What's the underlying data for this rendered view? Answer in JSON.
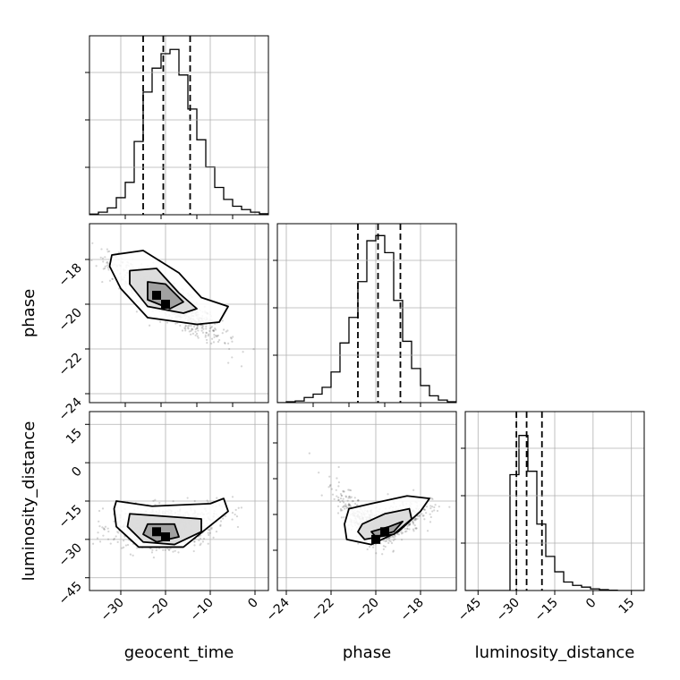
{
  "chart_data": {
    "type": "corner",
    "parameters": [
      "geocent_time",
      "phase",
      "luminosity_distance"
    ],
    "axis_labels": {
      "x": [
        "geocent_time",
        "phase",
        "luminosity_distance"
      ],
      "y": [
        "phase",
        "luminosity_distance"
      ]
    },
    "ranges": {
      "geocent_time": [
        -37,
        3
      ],
      "phase": [
        -24.4,
        -16.4
      ],
      "luminosity_distance": [
        -50,
        20
      ]
    },
    "ticks": {
      "geocent_time": [
        -30,
        -20,
        -10,
        0
      ],
      "phase": [
        -24,
        -22,
        -20,
        -18
      ],
      "luminosity_distance": [
        -45,
        -30,
        -15,
        0,
        15
      ]
    },
    "tick_labels": {
      "geocent_time": [
        "−30",
        "−20",
        "−10",
        "0"
      ],
      "phase": [
        "−24",
        "−22",
        "−20",
        "−18"
      ],
      "luminosity_distance": [
        "−45",
        "−30",
        "−15",
        "0",
        "15"
      ]
    },
    "quantiles": {
      "geocent_time": [
        -25.0,
        -20.5,
        -14.5
      ],
      "phase": [
        -20.8,
        -19.9,
        -18.9
      ],
      "luminosity_distance": [
        -30.0,
        -26.0,
        -20.0
      ]
    },
    "histograms": {
      "geocent_time": {
        "edges_start": -37,
        "bin_width": 2,
        "counts": [
          0.004,
          0.015,
          0.04,
          0.1,
          0.19,
          0.43,
          0.72,
          0.86,
          0.945,
          0.97,
          0.82,
          0.62,
          0.44,
          0.28,
          0.16,
          0.09,
          0.05,
          0.03,
          0.015,
          0.006
        ]
      },
      "phase": {
        "edges_start": -24.4,
        "bin_width": 0.4,
        "counts": [
          0.0,
          0.005,
          0.01,
          0.03,
          0.05,
          0.09,
          0.18,
          0.35,
          0.5,
          0.71,
          0.95,
          0.98,
          0.88,
          0.6,
          0.36,
          0.2,
          0.1,
          0.04,
          0.015,
          0.005
        ]
      },
      "luminosity_distance": {
        "edges_start": -50,
        "bin_width": 3.5,
        "counts": [
          0.0,
          0.0,
          0.0,
          0.0,
          0.0,
          0.68,
          0.91,
          0.7,
          0.39,
          0.2,
          0.11,
          0.05,
          0.03,
          0.02,
          0.01,
          0.005,
          0.002,
          0.0,
          0.0,
          0.0
        ]
      }
    },
    "pairs": [
      {
        "x": "geocent_time",
        "y": "phase",
        "scatter_center": [
          -20,
          -19.8
        ],
        "contours": [
          [
            [
              -32,
              -17.8
            ],
            [
              -25,
              -17.6
            ],
            [
              -17,
              -18.6
            ],
            [
              -12,
              -19.7
            ],
            [
              -6,
              -20.1
            ],
            [
              -8,
              -20.8
            ],
            [
              -13,
              -20.9
            ],
            [
              -24,
              -20.6
            ],
            [
              -30,
              -19.3
            ],
            [
              -32.5,
              -18.3
            ]
          ],
          [
            [
              -28,
              -18.5
            ],
            [
              -22,
              -18.4
            ],
            [
              -17,
              -19.5
            ],
            [
              -13,
              -20.2
            ],
            [
              -16,
              -20.4
            ],
            [
              -24,
              -20.1
            ],
            [
              -28,
              -19.1
            ]
          ],
          [
            [
              -24,
              -19.0
            ],
            [
              -20,
              -19.1
            ],
            [
              -16,
              -19.9
            ],
            [
              -19,
              -20.2
            ],
            [
              -24,
              -19.8
            ]
          ]
        ],
        "peaks": [
          [
            -22,
            -19.6
          ],
          [
            -20,
            -20.0
          ]
        ]
      },
      {
        "x": "geocent_time",
        "y": "luminosity_distance",
        "scatter_center": [
          -20,
          -25
        ],
        "contours": [
          [
            [
              -31,
              -15
            ],
            [
              -23,
              -17
            ],
            [
              -10,
              -16
            ],
            [
              -7,
              -14
            ],
            [
              -6,
              -19
            ],
            [
              -11,
              -26
            ],
            [
              -16,
              -33
            ],
            [
              -26,
              -33
            ],
            [
              -31,
              -25
            ],
            [
              -31.5,
              -18
            ]
          ],
          [
            [
              -28,
              -20
            ],
            [
              -20,
              -21
            ],
            [
              -12,
              -22
            ],
            [
              -12,
              -27
            ],
            [
              -18,
              -32
            ],
            [
              -25,
              -31
            ],
            [
              -28.5,
              -25
            ]
          ],
          [
            [
              -24,
              -24
            ],
            [
              -18,
              -24
            ],
            [
              -17,
              -29
            ],
            [
              -22,
              -31
            ],
            [
              -25,
              -28
            ]
          ]
        ],
        "peaks": [
          [
            -22,
            -27
          ],
          [
            -20,
            -29
          ]
        ]
      },
      {
        "x": "phase",
        "y": "luminosity_distance",
        "scatter_center": [
          -19.8,
          -25
        ],
        "contours": [
          [
            [
              -21.2,
              -18
            ],
            [
              -20.2,
              -16
            ],
            [
              -18.6,
              -13
            ],
            [
              -17.6,
              -14
            ],
            [
              -18.0,
              -19
            ],
            [
              -19.0,
              -27
            ],
            [
              -20.2,
              -32
            ],
            [
              -21.3,
              -30
            ],
            [
              -21.4,
              -24
            ]
          ],
          [
            [
              -20.6,
              -24
            ],
            [
              -19.6,
              -20
            ],
            [
              -18.5,
              -18
            ],
            [
              -18.4,
              -22
            ],
            [
              -19.2,
              -28
            ],
            [
              -20.5,
              -30
            ],
            [
              -20.8,
              -27
            ]
          ],
          [
            [
              -20.2,
              -27
            ],
            [
              -19.4,
              -25
            ],
            [
              -18.8,
              -23
            ],
            [
              -19.2,
              -27
            ],
            [
              -20.0,
              -29
            ]
          ]
        ],
        "peaks": [
          [
            -19.6,
            -27
          ],
          [
            -20.0,
            -30
          ]
        ]
      }
    ]
  }
}
